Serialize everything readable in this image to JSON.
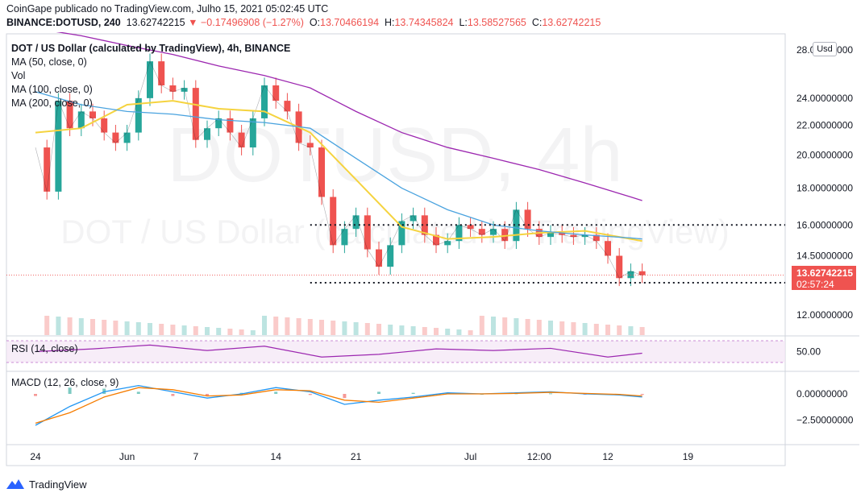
{
  "header": {
    "publisher_line": "CoinGape publicado no TradingView.com, Julho 15, 2021 05:02:45 UTC",
    "symbol": "BINANCE:DOTUSD, 240",
    "last": "13.62742215",
    "change": "−0.17496908 (−1.27%)",
    "o_label": "O:",
    "o_value": "13.70466194",
    "h_label": "H:",
    "h_value": "13.74345824",
    "l_label": "L:",
    "l_value": "13.58527565",
    "c_label": "C:",
    "c_value": "13.62742215"
  },
  "legend": {
    "title": "DOT / US Dollar (calculated by TradingView), 4h, BINANCE",
    "ma50": "MA (50, close, 0)",
    "vol": "Vol",
    "ma100": "MA (100, close, 0)",
    "ma200": "MA (200, close, 0)"
  },
  "watermark": {
    "symbol": "DOTUSD, 4h",
    "name": "DOT / US Dollar (calculated by TradingView)"
  },
  "currency_button": "Usd",
  "price_tag": {
    "price": "13.62742215",
    "countdown": "02:57:24"
  },
  "rsi": {
    "label": "RSI (14, close)",
    "tick": "50.00"
  },
  "macd": {
    "label": "MACD (12, 26, close, 9)",
    "ticks": [
      "0.00000000",
      "−2.50000000"
    ]
  },
  "footer": {
    "brand": "TradingView"
  },
  "colors": {
    "up": "#26a69a",
    "down": "#ef5350",
    "ma50": "#f5d33f",
    "ma100": "#4aa3df",
    "ma200": "#9c27b0",
    "rsi": "#9c27b0",
    "macd": "#2196f3",
    "signal": "#f57c00"
  },
  "chart_data": {
    "type": "line",
    "price_ticks": [
      "28.00000000",
      "24.00000000",
      "22.00000000",
      "20.00000000",
      "18.00000000",
      "16.00000000",
      "14.50000000",
      "12.00000000"
    ],
    "price_tick_values": [
      28,
      24,
      22,
      20,
      18,
      16,
      14.5,
      12
    ],
    "price_scale": "log",
    "x_ticks": [
      "24",
      "Jun",
      "7",
      "14",
      "21",
      "Jul",
      "12:00",
      "12",
      "19"
    ],
    "x_tick_days": [
      0,
      8,
      14,
      21,
      28,
      38,
      44,
      50,
      57
    ],
    "support_levels": [
      16.0,
      13.3
    ],
    "series": [
      {
        "name": "close",
        "x": [
          0,
          1,
          2,
          3,
          4,
          5,
          6,
          7,
          8,
          9,
          10,
          11,
          12,
          13,
          14,
          15,
          16,
          17,
          18,
          19,
          20,
          21,
          22,
          23,
          24,
          25,
          26,
          27,
          28,
          29,
          30,
          31,
          32,
          33,
          34,
          35,
          36,
          37,
          38,
          39,
          40,
          41,
          42,
          43,
          44,
          45,
          46,
          47,
          48,
          49,
          50,
          51,
          52,
          53
        ],
        "values": [
          20.5,
          17.8,
          23.8,
          21.8,
          23.0,
          22.5,
          21.5,
          20.8,
          21.5,
          24.0,
          27.0,
          25.0,
          24.5,
          24.8,
          21.0,
          21.8,
          22.5,
          21.5,
          20.5,
          22.5,
          25.0,
          23.8,
          23.0,
          20.8,
          20.5,
          17.5,
          15.0,
          15.8,
          16.5,
          14.8,
          14.0,
          15.0,
          16.2,
          16.5,
          15.5,
          15.0,
          15.2,
          16.0,
          15.8,
          15.5,
          15.8,
          15.2,
          16.8,
          15.8,
          15.4,
          15.6,
          15.5,
          15.4,
          15.5,
          15.2,
          14.5,
          13.5,
          13.8,
          13.63
        ]
      },
      {
        "name": "",
        "x": [
          0,
          4,
          8,
          12,
          16,
          20,
          24,
          28,
          32,
          36,
          40,
          44,
          48,
          52,
          53
        ],
        "values": [
          21.5,
          21.8,
          23.5,
          23.8,
          23.2,
          23.0,
          21.5,
          18.5,
          15.9,
          15.3,
          15.4,
          15.6,
          15.7,
          15.3,
          15.2
        ]
      },
      {
        "name": "",
        "x": [
          0,
          4,
          8,
          12,
          16,
          20,
          24,
          28,
          32,
          36,
          40,
          44,
          48,
          52,
          53
        ],
        "values": [
          24.5,
          23.5,
          23.0,
          22.8,
          22.4,
          22.2,
          21.8,
          19.8,
          18.0,
          16.8,
          16.0,
          15.7,
          15.5,
          15.35,
          15.3
        ]
      },
      {
        "name": "",
        "x": [
          0,
          4,
          8,
          12,
          16,
          20,
          24,
          28,
          32,
          36,
          40,
          44,
          48,
          52,
          53
        ],
        "values": [
          30.0,
          29.3,
          28.4,
          27.6,
          26.6,
          25.8,
          24.8,
          23.0,
          21.5,
          20.5,
          19.8,
          19.1,
          18.3,
          17.5,
          17.3
        ]
      }
    ],
    "rsi": {
      "x": [
        0,
        5,
        10,
        15,
        20,
        25,
        30,
        35,
        40,
        45,
        50,
        53
      ],
      "values": [
        50,
        55,
        62,
        52,
        60,
        40,
        45,
        55,
        52,
        56,
        40,
        47
      ]
    },
    "macd": {
      "x": [
        0,
        3,
        6,
        9,
        12,
        15,
        18,
        21,
        24,
        27,
        30,
        33,
        36,
        39,
        42,
        45,
        48,
        51,
        53
      ],
      "macd": [
        -3.0,
        -1.2,
        0.2,
        0.8,
        0.2,
        -0.4,
        0.0,
        0.6,
        0.2,
        -1.0,
        -0.6,
        -0.3,
        0.1,
        0.0,
        0.1,
        0.2,
        0.0,
        -0.1,
        -0.3
      ],
      "signal": [
        -2.8,
        -1.8,
        -0.3,
        0.6,
        0.4,
        -0.2,
        -0.1,
        0.4,
        0.3,
        -0.6,
        -0.8,
        -0.4,
        0.0,
        0.0,
        0.05,
        0.15,
        0.05,
        -0.05,
        -0.2
      ]
    }
  }
}
